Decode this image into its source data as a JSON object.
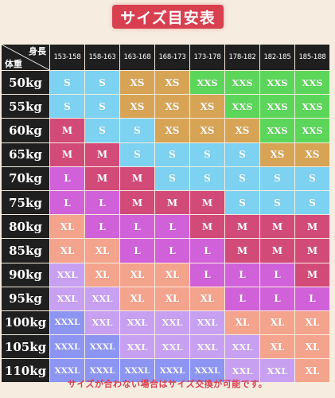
{
  "title": "サイズ目安表",
  "corner": {
    "height_label": "身長",
    "weight_label": "体重"
  },
  "heights": [
    "153-158",
    "158-163",
    "163-168",
    "168-173",
    "173-178",
    "178-182",
    "182-185",
    "185-188"
  ],
  "rows": [
    {
      "weight": "50kg",
      "sizes": [
        "S",
        "S",
        "XS",
        "XS",
        "XXS",
        "XXS",
        "XXS",
        "XXS"
      ]
    },
    {
      "weight": "55kg",
      "sizes": [
        "S",
        "S",
        "XS",
        "XS",
        "XS",
        "XXS",
        "XXS",
        "XXS"
      ]
    },
    {
      "weight": "60kg",
      "sizes": [
        "M",
        "S",
        "S",
        "XS",
        "XS",
        "XS",
        "XXS",
        "XXS"
      ]
    },
    {
      "weight": "65kg",
      "sizes": [
        "M",
        "M",
        "S",
        "S",
        "S",
        "S",
        "XS",
        "XS"
      ]
    },
    {
      "weight": "70kg",
      "sizes": [
        "L",
        "M",
        "M",
        "S",
        "S",
        "S",
        "S",
        "S"
      ]
    },
    {
      "weight": "75kg",
      "sizes": [
        "L",
        "L",
        "M",
        "M",
        "M",
        "S",
        "S",
        "S"
      ]
    },
    {
      "weight": "80kg",
      "sizes": [
        "XL",
        "L",
        "L",
        "L",
        "M",
        "M",
        "M",
        "M"
      ]
    },
    {
      "weight": "85kg",
      "sizes": [
        "XL",
        "XL",
        "L",
        "L",
        "L",
        "M",
        "M",
        "M"
      ]
    },
    {
      "weight": "90kg",
      "sizes": [
        "XXL",
        "XL",
        "XL",
        "XL",
        "L",
        "L",
        "L",
        "M"
      ]
    },
    {
      "weight": "95kg",
      "sizes": [
        "XXL",
        "XXL",
        "XL",
        "XL",
        "XL",
        "L",
        "L",
        "L"
      ]
    },
    {
      "weight": "100kg",
      "sizes": [
        "XXXL",
        "XXL",
        "XXL",
        "XXL",
        "XXL",
        "XL",
        "XL",
        "XL"
      ]
    },
    {
      "weight": "105kg",
      "sizes": [
        "XXXL",
        "XXXL",
        "XXL",
        "XXL",
        "XXL",
        "XXL",
        "XL",
        "XL"
      ]
    },
    {
      "weight": "110kg",
      "sizes": [
        "XXXL",
        "XXXL",
        "XXXL",
        "XXXL",
        "XXXL",
        "XXL",
        "XXL",
        "XL"
      ]
    }
  ],
  "size_colors": {
    "XXS": "#5cd65a",
    "XS": "#d7a456",
    "S": "#7cd2f0",
    "M": "#d24a78",
    "L": "#d061d9",
    "XL": "#f4a38c",
    "XXL": "#c8a0f2",
    "XXXL": "#8c95f2"
  },
  "footer": "サイズが合わない場合はサイズ交換が可能です。"
}
